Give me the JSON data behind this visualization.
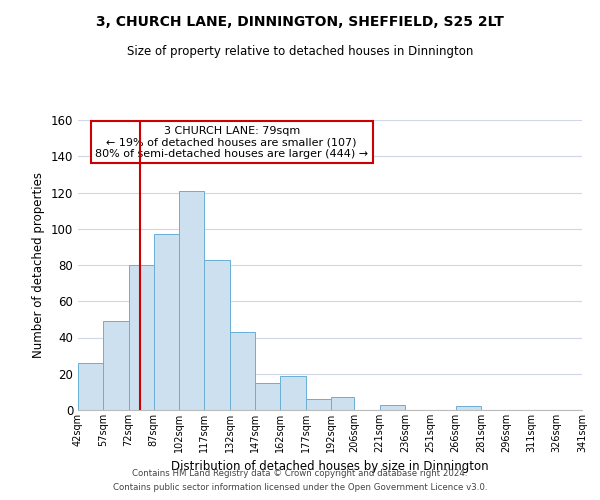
{
  "title": "3, CHURCH LANE, DINNINGTON, SHEFFIELD, S25 2LT",
  "subtitle": "Size of property relative to detached houses in Dinnington",
  "xlabel": "Distribution of detached houses by size in Dinnington",
  "ylabel": "Number of detached properties",
  "bin_edges": [
    42,
    57,
    72,
    87,
    102,
    117,
    132,
    147,
    162,
    177,
    192,
    206,
    221,
    236,
    251,
    266,
    281,
    296,
    311,
    326,
    341
  ],
  "bar_heights": [
    26,
    49,
    80,
    97,
    121,
    83,
    43,
    15,
    19,
    6,
    7,
    0,
    3,
    0,
    0,
    2,
    0,
    0,
    0,
    0
  ],
  "bar_color": "#cde0f0",
  "bar_edgecolor": "#6aafd6",
  "vline_x": 79,
  "vline_color": "#cc0000",
  "annotation_text": "3 CHURCH LANE: 79sqm\n← 19% of detached houses are smaller (107)\n80% of semi-detached houses are larger (444) →",
  "annotation_box_color": "#ffffff",
  "annotation_box_edgecolor": "#cc0000",
  "ylim": [
    0,
    160
  ],
  "yticks": [
    0,
    20,
    40,
    60,
    80,
    100,
    120,
    140,
    160
  ],
  "tick_labels": [
    "42sqm",
    "57sqm",
    "72sqm",
    "87sqm",
    "102sqm",
    "117sqm",
    "132sqm",
    "147sqm",
    "162sqm",
    "177sqm",
    "192sqm",
    "206sqm",
    "221sqm",
    "236sqm",
    "251sqm",
    "266sqm",
    "281sqm",
    "296sqm",
    "311sqm",
    "326sqm",
    "341sqm"
  ],
  "footnote1": "Contains HM Land Registry data © Crown copyright and database right 2024.",
  "footnote2": "Contains public sector information licensed under the Open Government Licence v3.0.",
  "background_color": "#ffffff",
  "grid_color": "#d0d8e8"
}
